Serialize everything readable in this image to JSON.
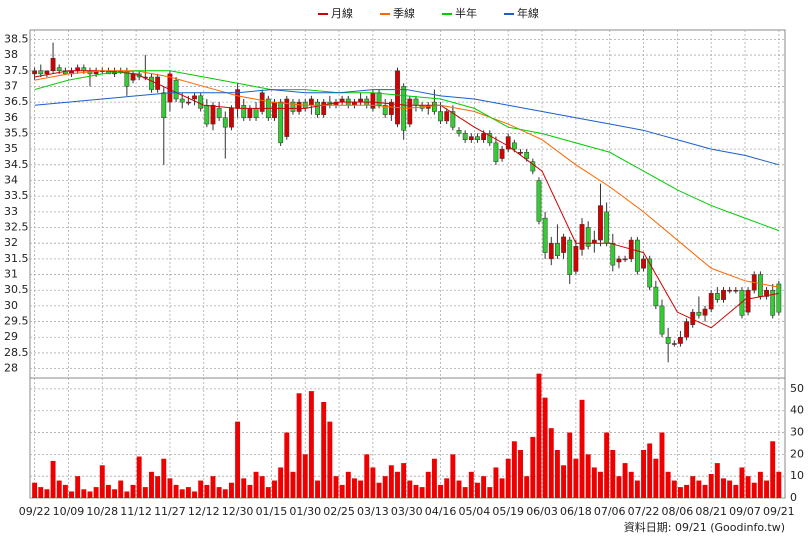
{
  "chart_data": [
    {
      "type": "candlestick",
      "x": [
        0,
        2,
        4,
        6,
        8,
        10,
        12,
        14,
        16,
        18,
        20,
        22,
        24,
        26,
        28,
        30,
        32,
        34,
        36,
        38,
        40,
        42,
        44,
        46,
        48,
        50,
        52,
        54,
        56,
        58,
        60,
        62,
        64,
        66,
        68,
        70,
        72,
        74,
        76,
        78,
        80,
        82,
        84,
        86,
        88,
        90,
        92,
        94,
        96,
        98,
        100,
        102,
        104,
        106,
        108,
        110,
        112,
        114,
        116,
        118,
        120,
        122,
        124,
        126,
        128,
        130,
        132,
        134,
        136,
        138,
        140,
        142,
        144,
        146,
        148,
        150,
        152,
        154,
        156,
        158,
        160,
        162,
        164,
        166,
        168,
        170,
        172,
        174,
        176,
        178,
        180,
        182,
        184,
        186,
        188,
        190,
        192,
        194,
        196,
        198,
        200,
        202,
        204,
        206,
        208,
        210,
        212,
        214,
        216,
        218,
        220,
        222,
        224,
        226,
        228,
        230,
        232,
        234,
        236,
        238,
        240,
        242
      ],
      "open": [
        37.4,
        37.5,
        37.4,
        37.5,
        37.6,
        37.5,
        37.4,
        37.5,
        37.6,
        37.5,
        37.4,
        37.5,
        37.5,
        37.4,
        37.5,
        37.5,
        37.2,
        37.4,
        37.3,
        37.3,
        36.9,
        36.8,
        36.5,
        37.2,
        36.6,
        36.5,
        36.6,
        36.7,
        36.4,
        35.8,
        36.3,
        36.0,
        35.7,
        36.3,
        36.4,
        36.0,
        36.3,
        36.2,
        36.6,
        36.0,
        36.5,
        35.4,
        36.5,
        36.2,
        36.5,
        36.4,
        36.5,
        36.1,
        36.5,
        36.4,
        36.5,
        36.6,
        36.4,
        36.5,
        36.6,
        36.3,
        36.8,
        36.4,
        36.1,
        35.8,
        37.0,
        35.8,
        36.6,
        36.4,
        36.3,
        36.5,
        36.2,
        35.9,
        36.2,
        35.6,
        35.5,
        35.3,
        35.4,
        35.3,
        35.5,
        35.2,
        34.7,
        35.0,
        35.2,
        34.9,
        34.9,
        34.6,
        34.0,
        32.8,
        31.5,
        32.0,
        31.7,
        32.1,
        31.1,
        31.8,
        32.5,
        32.0,
        32.1,
        33.0,
        32.0,
        31.4,
        31.5,
        31.5,
        32.1,
        31.2,
        31.5,
        30.6,
        30.0,
        29.0,
        28.8,
        28.8,
        29.0,
        29.4,
        29.8,
        29.7,
        29.9,
        30.4,
        30.2,
        30.5,
        30.5,
        30.5,
        29.8,
        30.5,
        31.0,
        30.3,
        30.5,
        30.7
      ],
      "high": [
        37.6,
        37.7,
        37.5,
        38.4,
        37.7,
        37.6,
        37.6,
        37.7,
        37.7,
        37.6,
        37.6,
        37.6,
        37.6,
        37.6,
        37.6,
        37.6,
        37.5,
        37.5,
        38.0,
        37.4,
        37.4,
        37.0,
        37.5,
        37.3,
        36.8,
        36.7,
        36.8,
        36.8,
        36.6,
        36.5,
        36.5,
        36.2,
        36.4,
        37.1,
        36.6,
        36.4,
        36.5,
        36.9,
        36.7,
        36.6,
        36.6,
        36.7,
        36.6,
        36.6,
        36.6,
        36.7,
        36.6,
        36.6,
        36.7,
        36.6,
        36.7,
        36.7,
        36.6,
        36.8,
        36.7,
        36.9,
        36.9,
        36.6,
        36.6,
        37.6,
        37.1,
        36.7,
        36.7,
        36.5,
        36.5,
        36.9,
        36.5,
        36.3,
        36.4,
        35.7,
        35.6,
        35.5,
        35.5,
        35.6,
        35.6,
        35.4,
        35.1,
        35.5,
        35.3,
        35.0,
        35.0,
        34.7,
        34.1,
        33.0,
        32.2,
        32.6,
        32.3,
        32.2,
        32.1,
        32.8,
        32.7,
        32.4,
        33.9,
        33.3,
        32.3,
        31.6,
        31.6,
        32.2,
        32.2,
        31.6,
        31.6,
        30.8,
        30.2,
        29.3,
        28.9,
        29.2,
        29.6,
        29.9,
        30.3,
        30.0,
        30.5,
        30.6,
        30.6,
        30.6,
        30.6,
        30.6,
        30.6,
        31.1,
        31.1,
        30.6,
        30.7,
        30.8
      ],
      "low": [
        37.2,
        37.3,
        37.3,
        37.4,
        37.4,
        37.4,
        37.3,
        37.4,
        37.4,
        37.0,
        37.3,
        37.4,
        37.4,
        37.3,
        37.4,
        36.7,
        37.1,
        37.2,
        37.2,
        36.8,
        36.8,
        34.5,
        36.2,
        36.5,
        36.3,
        36.4,
        36.4,
        36.2,
        35.7,
        35.6,
        35.9,
        34.7,
        35.6,
        36.0,
        35.9,
        35.9,
        35.9,
        36.1,
        35.9,
        35.9,
        35.1,
        35.3,
        36.1,
        36.1,
        36.2,
        36.1,
        36.0,
        36.0,
        36.3,
        36.3,
        36.4,
        36.3,
        36.3,
        36.4,
        36.3,
        36.2,
        36.3,
        36.0,
        35.9,
        35.7,
        35.3,
        35.7,
        36.2,
        36.2,
        36.1,
        36.1,
        35.8,
        35.8,
        35.6,
        35.4,
        35.2,
        35.2,
        35.2,
        35.2,
        35.1,
        34.5,
        34.6,
        34.9,
        34.9,
        34.8,
        34.6,
        34.2,
        32.6,
        31.5,
        31.3,
        31.5,
        31.5,
        30.7,
        31.0,
        31.6,
        31.8,
        31.7,
        31.9,
        31.9,
        31.1,
        31.2,
        31.4,
        31.4,
        31.0,
        31.1,
        30.5,
        29.9,
        29.0,
        28.2,
        28.7,
        28.7,
        28.9,
        29.3,
        29.6,
        29.5,
        29.8,
        30.1,
        30.1,
        30.4,
        30.4,
        29.6,
        29.7,
        30.4,
        30.2,
        30.2,
        29.6,
        29.7
      ],
      "close": [
        37.5,
        37.4,
        37.5,
        37.9,
        37.5,
        37.4,
        37.5,
        37.6,
        37.5,
        37.4,
        37.5,
        37.5,
        37.4,
        37.5,
        37.5,
        37.0,
        37.4,
        37.3,
        37.3,
        36.9,
        37.3,
        36.0,
        37.4,
        36.6,
        36.5,
        36.5,
        36.7,
        36.3,
        35.8,
        36.4,
        36.0,
        35.7,
        36.3,
        36.9,
        36.0,
        36.3,
        36.0,
        36.8,
        36.0,
        36.5,
        35.2,
        36.6,
        36.2,
        36.5,
        36.3,
        36.6,
        36.1,
        36.5,
        36.4,
        36.5,
        36.6,
        36.4,
        36.5,
        36.6,
        36.4,
        36.8,
        36.4,
        36.1,
        36.5,
        37.5,
        35.6,
        36.6,
        36.4,
        36.3,
        36.4,
        36.2,
        35.9,
        36.2,
        35.7,
        35.5,
        35.3,
        35.4,
        35.3,
        35.5,
        35.2,
        34.6,
        35.0,
        35.4,
        35.0,
        34.9,
        34.7,
        34.3,
        32.7,
        31.7,
        32.0,
        31.6,
        32.2,
        31.0,
        31.9,
        32.6,
        31.9,
        32.1,
        33.2,
        32.0,
        31.3,
        31.5,
        31.5,
        32.1,
        31.1,
        31.5,
        30.6,
        30.0,
        29.1,
        28.8,
        28.8,
        29.0,
        29.5,
        29.8,
        29.7,
        29.9,
        30.4,
        30.2,
        30.5,
        30.5,
        30.5,
        29.7,
        30.5,
        31.0,
        30.3,
        30.5,
        29.7,
        29.8
      ],
      "up_color": "#d40000",
      "down_color": "#33cc33",
      "series": [
        {
          "name": "月線",
          "color": "#cc0000",
          "x": [
            0,
            11,
            22,
            33,
            44,
            55,
            66,
            77,
            88,
            99,
            110,
            121,
            132,
            143,
            154,
            165,
            176,
            187,
            198,
            209,
            220,
            231,
            242
          ],
          "values": [
            37.3,
            37.5,
            37.5,
            37.4,
            36.9,
            36.4,
            36.3,
            36.3,
            36.3,
            36.5,
            36.5,
            36.4,
            36.4,
            35.7,
            35.1,
            34.3,
            32.0,
            32.0,
            31.7,
            29.8,
            29.3,
            30.2,
            30.4
          ]
        },
        {
          "name": "季線",
          "color": "#ff6600",
          "x": [
            0,
            11,
            22,
            33,
            44,
            55,
            66,
            77,
            88,
            99,
            110,
            121,
            132,
            143,
            154,
            165,
            176,
            187,
            198,
            209,
            220,
            231,
            242
          ],
          "values": [
            37.2,
            37.4,
            37.5,
            37.5,
            37.3,
            37.0,
            36.7,
            36.5,
            36.4,
            36.4,
            36.4,
            36.3,
            36.4,
            36.2,
            35.8,
            35.3,
            34.5,
            33.8,
            33.0,
            32.1,
            31.2,
            30.8,
            30.6
          ]
        },
        {
          "name": "半年",
          "color": "#00cc00",
          "x": [
            0,
            11,
            22,
            33,
            44,
            55,
            66,
            77,
            88,
            99,
            110,
            121,
            132,
            143,
            154,
            165,
            176,
            187,
            198,
            209,
            220,
            231,
            242
          ],
          "values": [
            36.9,
            37.2,
            37.4,
            37.5,
            37.5,
            37.3,
            37.1,
            36.9,
            36.9,
            36.8,
            36.8,
            36.7,
            36.6,
            36.3,
            35.7,
            35.5,
            35.2,
            34.9,
            34.3,
            33.7,
            33.2,
            32.8,
            32.4
          ]
        },
        {
          "name": "年線",
          "color": "#1a5fcc",
          "x": [
            0,
            11,
            22,
            33,
            44,
            55,
            66,
            77,
            88,
            99,
            110,
            121,
            132,
            143,
            154,
            165,
            176,
            187,
            198,
            209,
            220,
            231,
            242
          ],
          "values": [
            36.4,
            36.5,
            36.6,
            36.7,
            36.8,
            36.8,
            36.8,
            36.9,
            36.8,
            36.8,
            36.9,
            36.9,
            36.7,
            36.6,
            36.4,
            36.2,
            36.0,
            35.8,
            35.6,
            35.3,
            35.0,
            34.8,
            34.5
          ]
        }
      ],
      "xlim": [
        -1.5,
        244
      ],
      "ylim": [
        27.7,
        38.8
      ],
      "yticks": [
        28,
        28.5,
        29,
        29.5,
        30,
        30.5,
        31,
        31.5,
        32,
        32.5,
        33,
        33.5,
        34,
        34.5,
        35,
        35.5,
        36,
        36.5,
        37,
        37.5,
        38,
        38.5
      ],
      "grid": true
    },
    {
      "type": "bar",
      "values": [
        7,
        5,
        4,
        17,
        8,
        6,
        3,
        10,
        4,
        3,
        5,
        15,
        6,
        4,
        8,
        3,
        6,
        19,
        5,
        12,
        10,
        18,
        9,
        6,
        4,
        5,
        3,
        8,
        6,
        10,
        5,
        4,
        7,
        35,
        9,
        6,
        12,
        10,
        5,
        8,
        14,
        30,
        12,
        48,
        20,
        49,
        8,
        44,
        35,
        10,
        6,
        12,
        9,
        8,
        20,
        14,
        7,
        10,
        15,
        12,
        16,
        8,
        6,
        5,
        12,
        18,
        6,
        9,
        20,
        8,
        5,
        12,
        7,
        10,
        5,
        14,
        9,
        18,
        26,
        22,
        10,
        28,
        57,
        46,
        32,
        22,
        15,
        30,
        18,
        45,
        20,
        14,
        12,
        30,
        22,
        10,
        16,
        12,
        8,
        22,
        25,
        18,
        30,
        12,
        8,
        5,
        6,
        10,
        8,
        6,
        11,
        16,
        9,
        8,
        6,
        14,
        10,
        7,
        12,
        8,
        26,
        12
      ],
      "color": "#ee0000",
      "ylim": [
        0,
        55
      ],
      "yticks": [
        0,
        10,
        20,
        30,
        40,
        50
      ],
      "xticks": [
        {
          "value": 0,
          "label": "09/22"
        },
        {
          "value": 11,
          "label": "10/09"
        },
        {
          "value": 22,
          "label": "10/28"
        },
        {
          "value": 33,
          "label": "11/12"
        },
        {
          "value": 44,
          "label": "11/27"
        },
        {
          "value": 55,
          "label": "12/12"
        },
        {
          "value": 66,
          "label": "12/30"
        },
        {
          "value": 77,
          "label": "01/15"
        },
        {
          "value": 88,
          "label": "01/30"
        },
        {
          "value": 99,
          "label": "02/25"
        },
        {
          "value": 110,
          "label": "03/13"
        },
        {
          "value": 121,
          "label": "03/30"
        },
        {
          "value": 132,
          "label": "04/16"
        },
        {
          "value": 143,
          "label": "05/04"
        },
        {
          "value": 154,
          "label": "05/19"
        },
        {
          "value": 165,
          "label": "06/03"
        },
        {
          "value": 176,
          "label": "06/18"
        },
        {
          "value": 187,
          "label": "07/06"
        },
        {
          "value": 198,
          "label": "07/22"
        },
        {
          "value": 209,
          "label": "08/06"
        },
        {
          "value": 220,
          "label": "08/21"
        },
        {
          "value": 231,
          "label": "09/07"
        },
        {
          "value": 242,
          "label": "09/21"
        }
      ],
      "footnote": "資料日期: 09/21 (Goodinfo.tw)",
      "grid": true
    }
  ]
}
